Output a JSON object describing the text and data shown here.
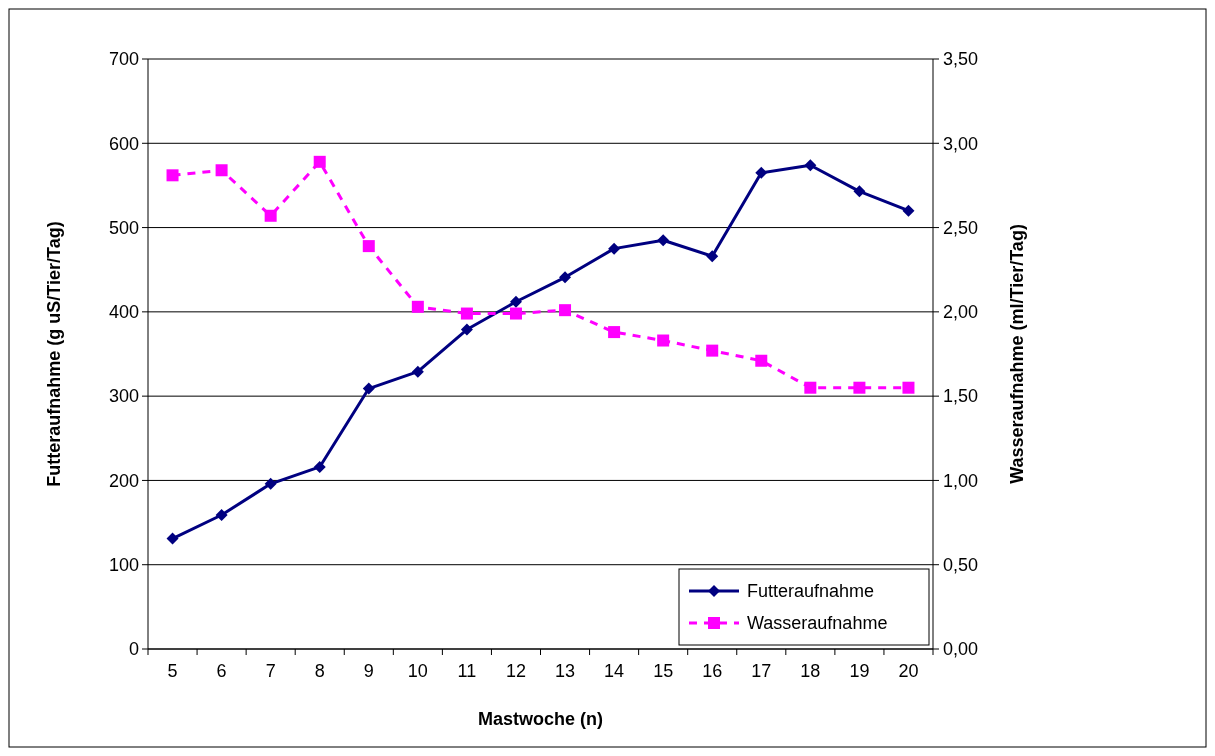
{
  "chart_data": {
    "type": "line",
    "xlabel": "Mastwoche (n)",
    "ylabel": "Futteraufnahme (g uS/Tier/Tag)",
    "y2label": "Wasseraufnahme (ml/Tier/Tag)",
    "categories": [
      "5",
      "6",
      "7",
      "8",
      "9",
      "10",
      "11",
      "12",
      "13",
      "14",
      "15",
      "16",
      "17",
      "18",
      "19",
      "20"
    ],
    "series": [
      {
        "name": "Futteraufnahme",
        "color": "#000080",
        "marker": "diamond",
        "line_style": "solid",
        "values": [
          131,
          159,
          196,
          216,
          309,
          329,
          379,
          412,
          441,
          475,
          485,
          466,
          565,
          574,
          543,
          520
        ]
      },
      {
        "name": "Wasseraufnahme",
        "color": "#ff00ff",
        "marker": "square",
        "line_style": "dashed",
        "axis": "y2",
        "values": [
          2.81,
          2.84,
          2.57,
          2.89,
          2.39,
          2.03,
          1.99,
          1.99,
          2.01,
          1.88,
          1.83,
          1.77,
          1.71,
          1.55,
          1.55,
          1.55
        ]
      }
    ],
    "ylim": [
      0,
      700
    ],
    "yticks": [
      0,
      100,
      200,
      300,
      400,
      500,
      600,
      700
    ],
    "y2lim": [
      0,
      3.5
    ],
    "y2ticks": [
      {
        "value": 0,
        "label": "0,00"
      },
      {
        "value": 0.5,
        "label": "0,50"
      },
      {
        "value": 1,
        "label": "1,00"
      },
      {
        "value": 1.5,
        "label": "1,50"
      },
      {
        "value": 2,
        "label": "2,00"
      },
      {
        "value": 2.5,
        "label": "2,50"
      },
      {
        "value": 3,
        "label": "3,00"
      },
      {
        "value": 3.5,
        "label": "3,50"
      }
    ],
    "grid": "y",
    "legend": "bottom right"
  }
}
